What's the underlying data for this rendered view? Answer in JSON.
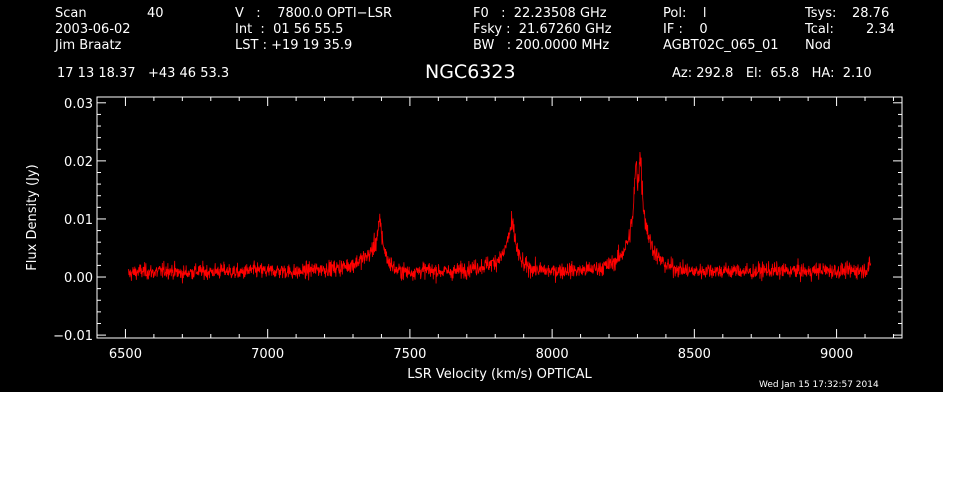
{
  "header": {
    "col1": {
      "scan_label": "Scan",
      "scan_value": "40",
      "date": "2003-06-02",
      "observer": "Jim Braatz"
    },
    "col2": {
      "v": "V   :    7800.0 OPTI−LSR",
      "int": "Int  :  01 56 55.5",
      "lst": "LST : +19 19 35.9"
    },
    "col3": {
      "f0": "F0   :  22.23508 GHz",
      "fsky": "Fsky :  21.67260 GHz",
      "bw": "BW   : 200.0000 MHz"
    },
    "col4": {
      "pol": "Pol:    l",
      "if": "IF :    0",
      "proj": "AGBT02C_065_01"
    },
    "col5": {
      "tsys_label": "Tsys:",
      "tsys_value": "28.76",
      "tcal_label": "Tcal:",
      "tcal_value": "2.34",
      "mode": "Nod"
    },
    "coords": "17 13 18.37   +43 46 53.3",
    "source": "NGC6323",
    "pointing": "Az: 292.8   El:  65.8   HA:  2.10"
  },
  "timestamp": "Wed Jan 15 17:32:57 2014",
  "colors": {
    "background": "#000000",
    "axes": "#ffffff",
    "trace": "#ff0000"
  },
  "chart_data": {
    "type": "line",
    "title": "NGC6323",
    "xlabel": "LSR Velocity (km/s) OPTICAL",
    "ylabel": "Flux Density (Jy)",
    "xlim": [
      6400,
      9230
    ],
    "ylim": [
      -0.0105,
      0.031
    ],
    "xticks": [
      6500,
      7000,
      7500,
      8000,
      8500,
      9000
    ],
    "xtick_labels": [
      "6500",
      "7000",
      "7500",
      "8000",
      "8500",
      "9000"
    ],
    "yticks": [
      -0.01,
      0.0,
      0.01,
      0.02,
      0.03
    ],
    "ytick_labels": [
      "−0.01",
      "0.00",
      "0.01",
      "0.02",
      "0.03"
    ],
    "grid": false,
    "series": [
      {
        "x": [
          6510,
          6550,
          6600,
          6650,
          6700,
          6750,
          6800,
          6850,
          6900,
          6950,
          7000,
          7050,
          7100,
          7150,
          7200,
          7250,
          7300,
          7330,
          7360,
          7380,
          7395,
          7405,
          7420,
          7450,
          7500,
          7550,
          7600,
          7650,
          7700,
          7750,
          7800,
          7830,
          7850,
          7860,
          7870,
          7880,
          7900,
          7950,
          8000,
          8050,
          8100,
          8150,
          8200,
          8240,
          8270,
          8285,
          8295,
          8300,
          8310,
          8320,
          8330,
          8340,
          8350,
          8370,
          8400,
          8450,
          8500,
          8550,
          8600,
          8650,
          8700,
          8750,
          8800,
          8850,
          8900,
          8950,
          9000,
          9050,
          9100,
          9120
        ],
        "values": [
          0.0005,
          0.001,
          0.0008,
          0.0012,
          0.0006,
          0.001,
          0.0009,
          0.0011,
          0.0007,
          0.0012,
          0.001,
          0.0011,
          0.0008,
          0.0012,
          0.0014,
          0.0016,
          0.0022,
          0.003,
          0.004,
          0.006,
          0.0095,
          0.006,
          0.003,
          0.0012,
          0.0008,
          0.0012,
          0.001,
          0.0009,
          0.0014,
          0.0018,
          0.0026,
          0.004,
          0.0075,
          0.009,
          0.0065,
          0.004,
          0.002,
          0.0012,
          0.001,
          0.0012,
          0.0011,
          0.0014,
          0.002,
          0.0035,
          0.0065,
          0.011,
          0.02,
          0.016,
          0.021,
          0.013,
          0.009,
          0.007,
          0.0055,
          0.0035,
          0.002,
          0.0013,
          0.0009,
          0.0012,
          0.001,
          0.0011,
          0.0008,
          0.0012,
          0.001,
          0.0011,
          0.0009,
          0.0012,
          0.001,
          0.0011,
          0.0012,
          0.002
        ],
        "noise_rms": 0.0009
      }
    ]
  }
}
